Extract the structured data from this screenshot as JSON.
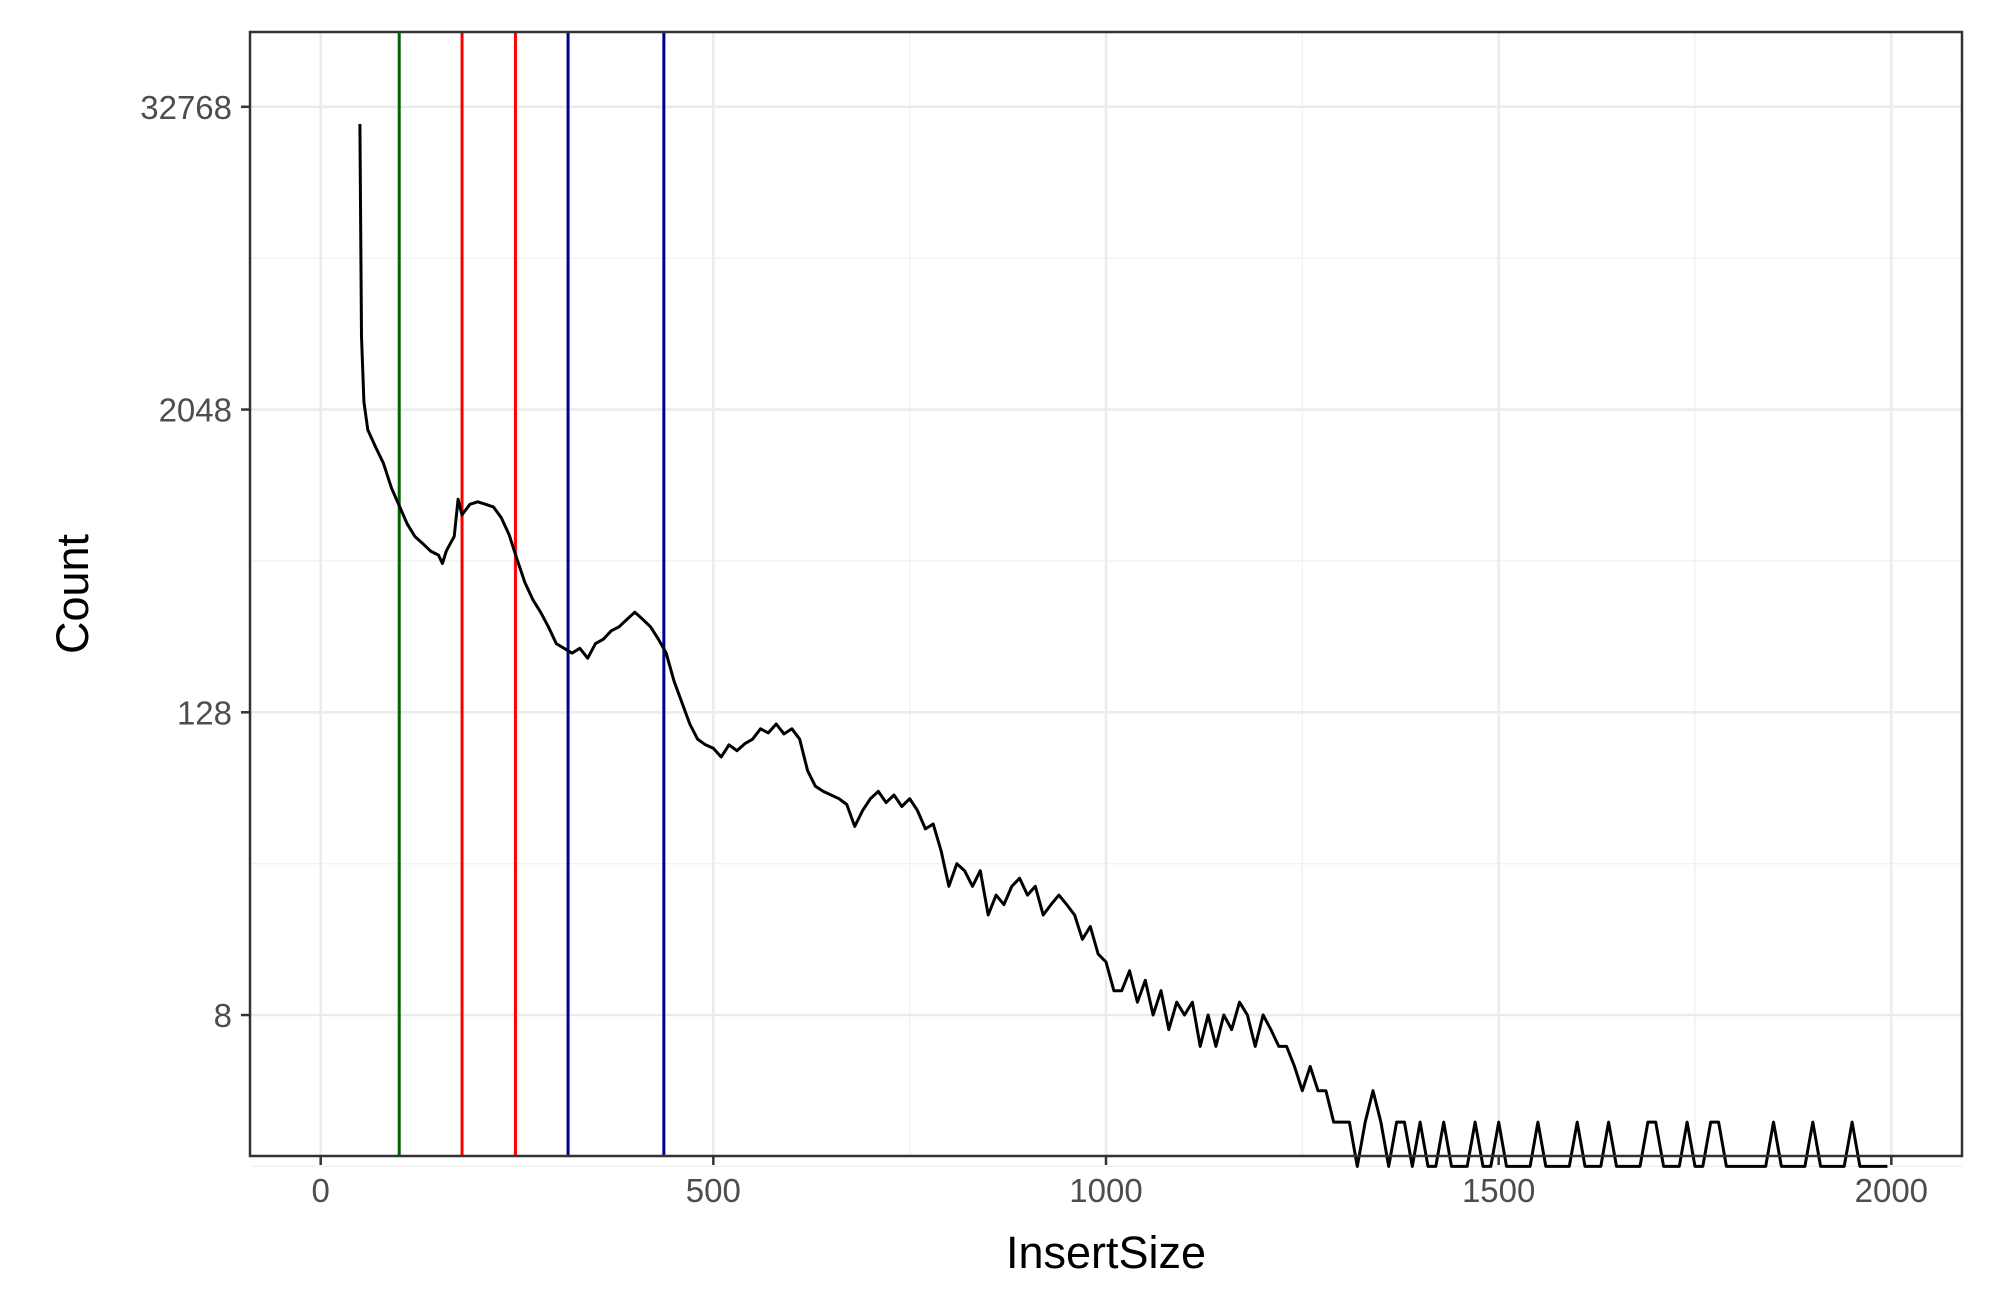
{
  "chart_data": {
    "type": "line",
    "title": "",
    "xlabel": "InsertSize",
    "ylabel": "Count",
    "x_scale": "linear",
    "y_scale": "log2",
    "xlim": [
      -90,
      2090
    ],
    "ylim": [
      2.2,
      65000
    ],
    "x_ticks": [
      0,
      500,
      1000,
      1500,
      2000
    ],
    "x_tick_labels": [
      "0",
      "500",
      "1000",
      "1500",
      "2000"
    ],
    "y_ticks": [
      8,
      128,
      2048,
      32768
    ],
    "y_tick_labels": [
      "8",
      "128",
      "2048",
      "32768"
    ],
    "y_minor_ticks": [
      2,
      32,
      512,
      8192
    ],
    "grid": true,
    "legend": "none",
    "line_color": "#000000",
    "vertical_lines": [
      {
        "x": 100,
        "color": "#006400"
      },
      {
        "x": 180,
        "color": "#ff0000"
      },
      {
        "x": 248,
        "color": "#ff0000"
      },
      {
        "x": 315,
        "color": "#00008b"
      },
      {
        "x": 437,
        "color": "#00008b"
      }
    ],
    "series": [
      {
        "x": [
          50,
          52,
          55,
          60,
          70,
          80,
          90,
          100,
          110,
          120,
          130,
          140,
          150,
          155,
          160,
          165,
          170,
          175,
          180,
          185,
          190,
          200,
          210,
          220,
          230,
          240,
          250,
          260,
          270,
          280,
          290,
          300,
          310,
          320,
          330,
          340,
          350,
          360,
          370,
          380,
          390,
          400,
          410,
          420,
          430,
          440,
          450,
          460,
          470,
          480,
          490,
          500,
          510,
          520,
          530,
          540,
          550,
          560,
          570,
          580,
          590,
          600,
          610,
          620,
          630,
          640,
          650,
          660,
          670,
          680,
          690,
          700,
          710,
          720,
          730,
          740,
          750,
          760,
          770,
          780,
          790,
          800,
          810,
          820,
          830,
          840,
          850,
          860,
          870,
          880,
          890,
          900,
          910,
          920,
          930,
          940,
          950,
          960,
          970,
          980,
          990,
          1000,
          1010,
          1020,
          1030,
          1040,
          1050,
          1060,
          1070,
          1080,
          1090,
          1100,
          1110,
          1120,
          1130,
          1140,
          1150,
          1160,
          1170,
          1180,
          1190,
          1200,
          1210,
          1220,
          1230,
          1240,
          1250,
          1260,
          1270,
          1280,
          1290,
          1300,
          1310,
          1320,
          1330,
          1340,
          1350,
          1360,
          1370,
          1380,
          1390,
          1400,
          1410,
          1420,
          1430,
          1440,
          1450,
          1460,
          1470,
          1480,
          1490,
          1500,
          1510,
          1520,
          1530,
          1540,
          1550,
          1560,
          1570,
          1580,
          1590,
          1600,
          1610,
          1620,
          1630,
          1640,
          1650,
          1660,
          1670,
          1680,
          1690,
          1700,
          1710,
          1720,
          1730,
          1740,
          1750,
          1760,
          1770,
          1780,
          1790,
          1800,
          1810,
          1820,
          1830,
          1840,
          1850,
          1860,
          1870,
          1880,
          1890,
          1900,
          1910,
          1920,
          1930,
          1940,
          1950,
          1960,
          1970,
          1980,
          1995
        ],
        "values": [
          28000,
          4000,
          2200,
          1700,
          1450,
          1250,
          1000,
          850,
          720,
          640,
          600,
          560,
          540,
          500,
          560,
          600,
          640,
          900,
          780,
          820,
          860,
          880,
          860,
          840,
          760,
          650,
          520,
          420,
          360,
          320,
          280,
          240,
          230,
          220,
          230,
          210,
          240,
          250,
          270,
          280,
          300,
          320,
          300,
          280,
          250,
          220,
          170,
          140,
          115,
          100,
          95,
          92,
          85,
          95,
          90,
          96,
          100,
          110,
          106,
          115,
          105,
          110,
          100,
          75,
          65,
          62,
          60,
          58,
          55,
          45,
          52,
          58,
          62,
          56,
          60,
          54,
          58,
          52,
          44,
          46,
          36,
          26,
          32,
          30,
          26,
          30,
          20,
          24,
          22,
          26,
          28,
          24,
          26,
          20,
          22,
          24,
          22,
          20,
          16,
          18,
          14,
          13,
          10,
          10,
          12,
          9,
          11,
          8,
          10,
          7,
          9,
          8,
          9,
          6,
          8,
          6,
          8,
          7,
          9,
          8,
          6,
          8,
          7,
          6,
          6,
          5,
          4,
          5,
          4,
          4,
          3,
          3,
          3,
          2,
          3,
          4,
          3,
          2,
          3,
          3,
          2,
          3,
          2,
          2,
          3,
          2,
          2,
          2,
          3,
          2,
          2,
          3,
          2,
          2,
          2,
          2,
          3,
          2,
          2,
          2,
          2,
          3,
          2,
          2,
          2,
          3,
          2,
          2,
          2,
          2,
          3,
          3,
          2,
          2,
          2,
          3,
          2,
          2,
          3,
          3,
          2,
          2,
          2,
          2,
          2,
          2,
          3,
          2,
          2,
          2,
          2,
          3,
          2,
          2,
          2,
          2,
          3,
          2,
          2,
          2,
          2
        ]
      }
    ]
  }
}
